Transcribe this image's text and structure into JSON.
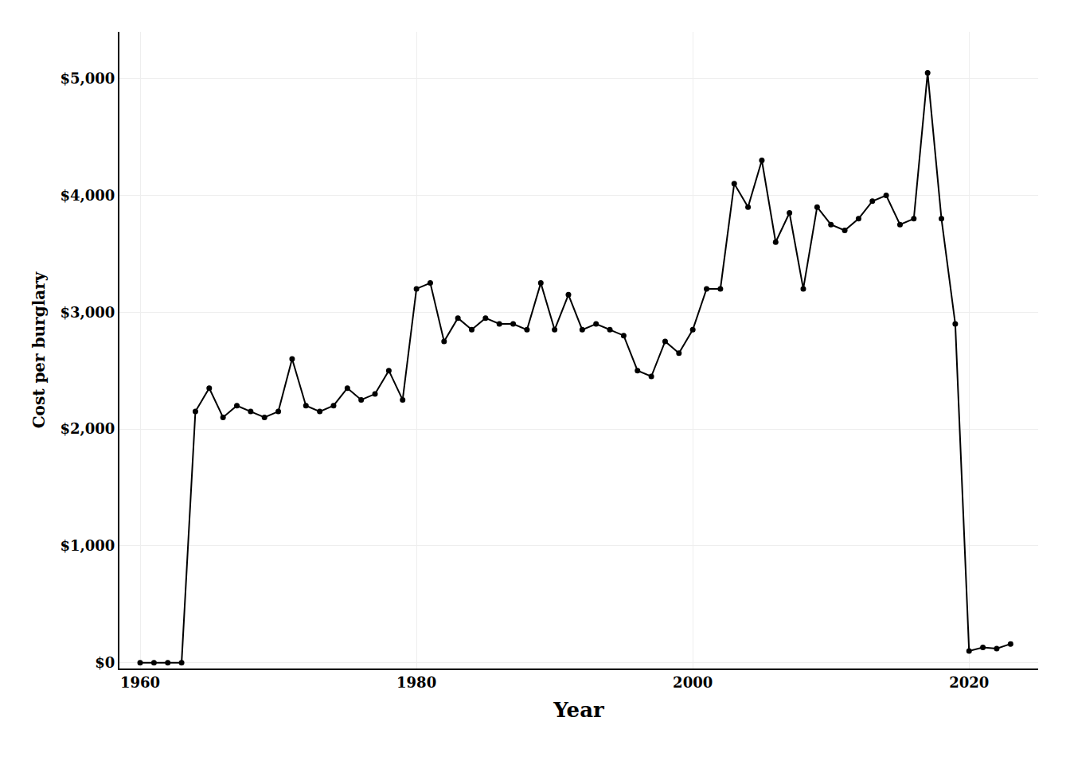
{
  "chart_data": {
    "type": "line",
    "x": [
      1960,
      1961,
      1962,
      1963,
      1964,
      1965,
      1966,
      1967,
      1968,
      1969,
      1970,
      1971,
      1972,
      1973,
      1974,
      1975,
      1976,
      1977,
      1978,
      1979,
      1980,
      1981,
      1982,
      1983,
      1984,
      1985,
      1986,
      1987,
      1988,
      1989,
      1990,
      1991,
      1992,
      1993,
      1994,
      1995,
      1996,
      1997,
      1998,
      1999,
      2000,
      2001,
      2002,
      2003,
      2004,
      2005,
      2006,
      2007,
      2008,
      2009,
      2010,
      2011,
      2012,
      2013,
      2014,
      2015,
      2016,
      2017,
      2018,
      2019,
      2020,
      2021,
      2022,
      2023
    ],
    "values": [
      0,
      0,
      0,
      0,
      2150,
      2350,
      2100,
      2200,
      2150,
      2100,
      2150,
      2600,
      2200,
      2150,
      2200,
      2350,
      2250,
      2300,
      2500,
      2250,
      3200,
      3250,
      2750,
      2950,
      2850,
      2950,
      2900,
      2900,
      2850,
      3250,
      2850,
      3150,
      2850,
      2900,
      2850,
      2800,
      2500,
      2450,
      2750,
      2650,
      2850,
      3200,
      3200,
      4100,
      3900,
      4300,
      3600,
      3850,
      3200,
      3900,
      3750,
      3700,
      3800,
      3950,
      4000,
      3750,
      3800,
      5050,
      3800,
      2900,
      100,
      130,
      120,
      160
    ],
    "xlabel": "Year",
    "ylabel": "Cost per burglary",
    "xlim": [
      1958.5,
      2025
    ],
    "xticks": [
      1960,
      1980,
      2000,
      2020
    ],
    "ylim": [
      -50,
      5400
    ],
    "yticks": [
      {
        "value": 0,
        "label": "$0"
      },
      {
        "value": 1000,
        "label": "$1,000"
      },
      {
        "value": 2000,
        "label": "$2,000"
      },
      {
        "value": 3000,
        "label": "$3,000"
      },
      {
        "value": 4000,
        "label": "$4,000"
      },
      {
        "value": 5000,
        "label": "$5,000"
      }
    ],
    "color": "#000000",
    "marker": "circle",
    "line_style": "solid",
    "grid": true
  }
}
